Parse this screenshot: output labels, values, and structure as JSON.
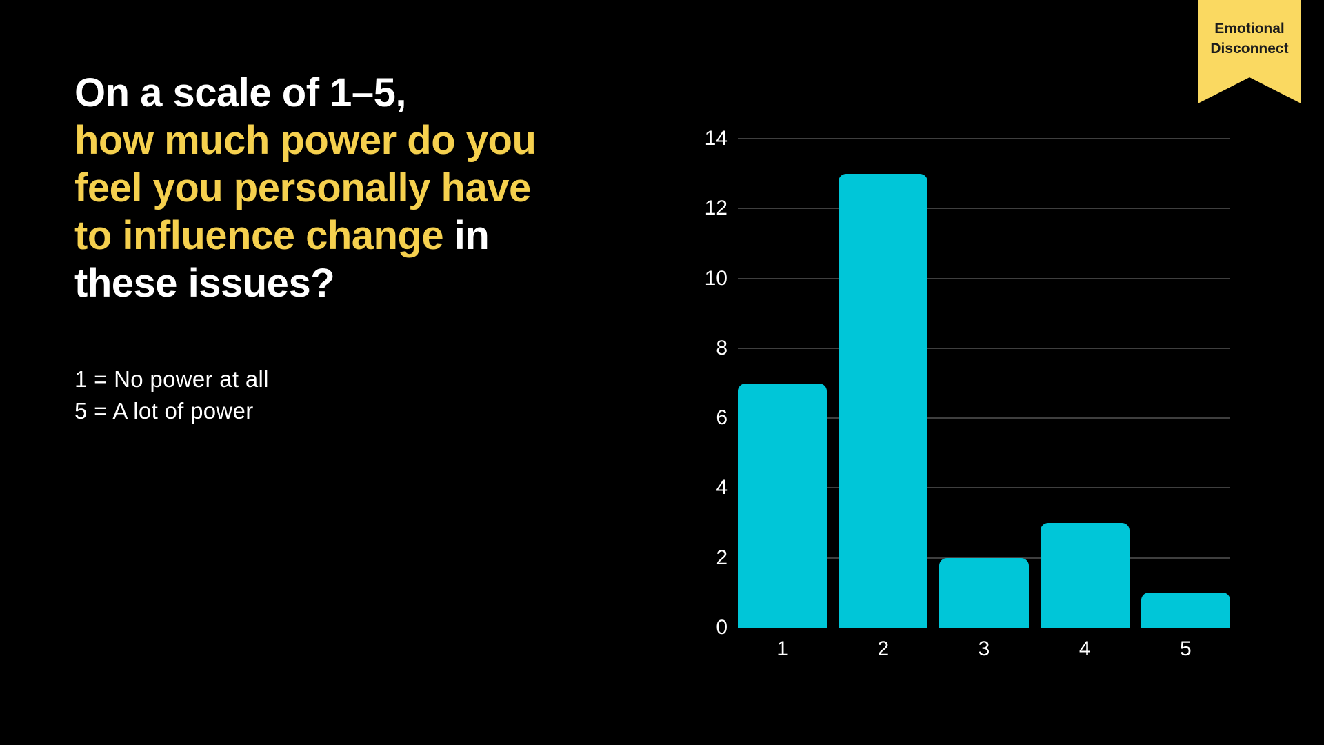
{
  "slide": {
    "background": "#000000"
  },
  "title": {
    "yellow": "#F5D04E",
    "white": "#FFFFFF",
    "lines": [
      {
        "segments": [
          {
            "text": "On a scale of 1–5,",
            "color": "white"
          }
        ]
      },
      {
        "segments": [
          {
            "text": "how much power do you",
            "color": "yellow"
          }
        ]
      },
      {
        "segments": [
          {
            "text": "feel you personally have",
            "color": "yellow"
          }
        ]
      },
      {
        "segments": [
          {
            "text": "to influence change",
            "color": "yellow"
          },
          {
            "text": " in",
            "color": "white"
          }
        ]
      },
      {
        "segments": [
          {
            "text": "these issues?",
            "color": "white"
          }
        ]
      }
    ]
  },
  "legend": {
    "line1": "1 = No power at all",
    "line2": "5 = A lot of power"
  },
  "ribbon": {
    "line1": "Emotional",
    "line2": "Disconnect",
    "bg_color": "#FAD961",
    "text_color": "#1C1C1C"
  },
  "chart_data": {
    "type": "bar",
    "categories": [
      "1",
      "2",
      "3",
      "4",
      "5"
    ],
    "values": [
      7,
      13,
      2,
      3,
      1
    ],
    "title": "",
    "xlabel": "",
    "ylabel": "",
    "ylim": [
      0,
      14
    ],
    "yticks": [
      0,
      2,
      4,
      6,
      8,
      10,
      12,
      14
    ],
    "grid": "horizontal",
    "legend_position": "none",
    "bar_color": "#00C6D8",
    "grid_color": "#4F4F4F",
    "tick_label_color": "#FFFFFF"
  }
}
